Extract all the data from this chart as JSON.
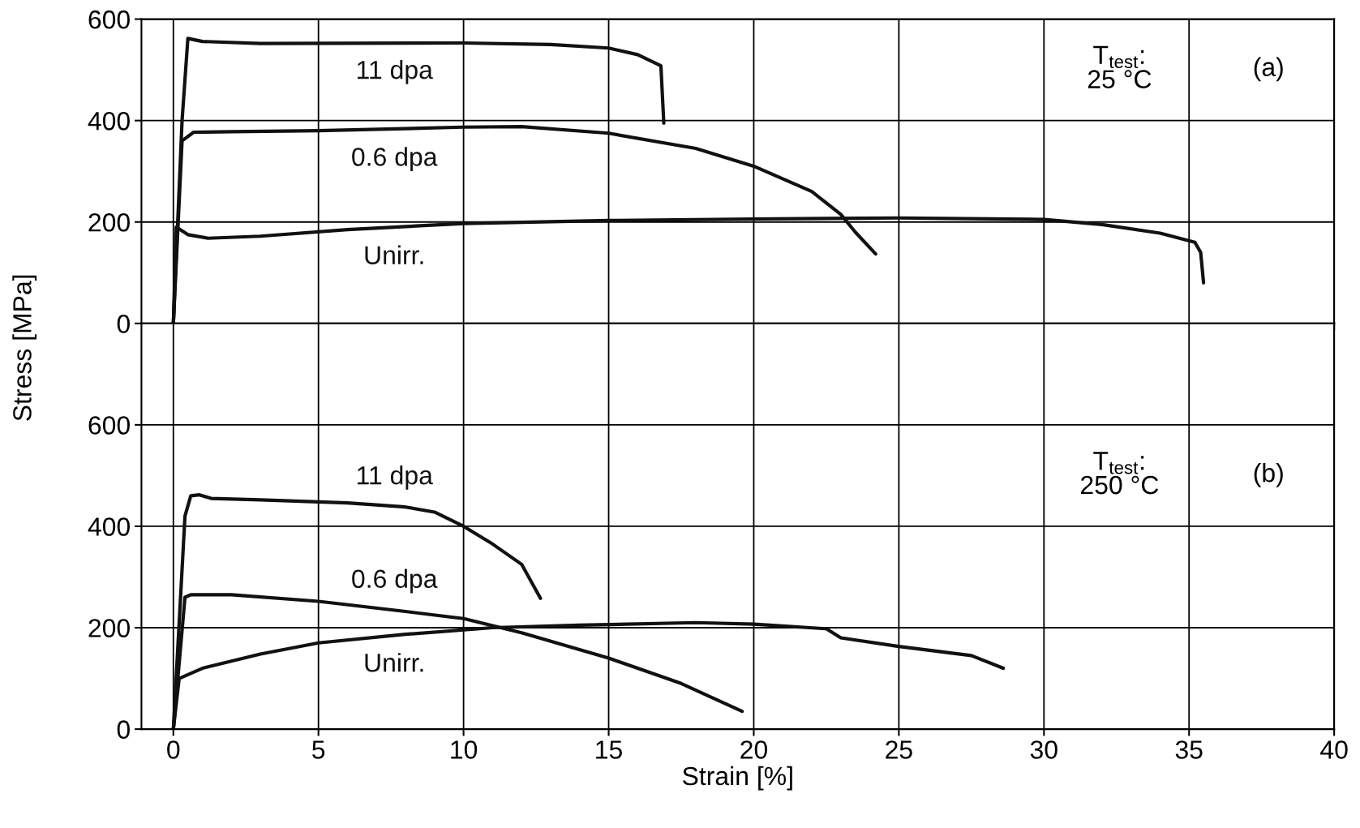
{
  "chart_data": [
    {
      "type": "line",
      "ylabel": "Stress [MPa]",
      "xlim": [
        -1.1,
        40
      ],
      "xticks": [
        0,
        5,
        10,
        15,
        20,
        25,
        30,
        35,
        40
      ],
      "ylim": [
        0,
        600
      ],
      "yticks": [
        0,
        200,
        400,
        600
      ],
      "grid": true,
      "tick_labels": "y",
      "marker": "none",
      "line_style": "solid",
      "series": [
        {
          "name": "11 dpa",
          "color": "#111111",
          "x": [
            0,
            0.3,
            0.5,
            1,
            3,
            10,
            13,
            15,
            16,
            16.8,
            16.9
          ],
          "values": [
            0,
            400,
            562,
            556,
            552,
            553,
            550,
            543,
            530,
            508,
            395
          ]
        },
        {
          "name": "0.6 dpa",
          "color": "#111111",
          "x": [
            0,
            0.3,
            0.7,
            2,
            5,
            10,
            12,
            15,
            18,
            20,
            22,
            23,
            23.5,
            24.2
          ],
          "values": [
            0,
            360,
            377,
            378,
            380,
            387,
            388,
            375,
            345,
            310,
            260,
            215,
            180,
            137
          ]
        },
        {
          "name": "Unirr.",
          "color": "#111111",
          "x": [
            0,
            0.1,
            0.5,
            1.2,
            3,
            6,
            10,
            15,
            20,
            25,
            30,
            32,
            34,
            35.2,
            35.4,
            35.5
          ],
          "values": [
            0,
            190,
            175,
            168,
            172,
            185,
            197,
            203,
            206,
            208,
            205,
            195,
            178,
            160,
            140,
            80
          ]
        }
      ],
      "annotations": [
        "T$_{test}$:\n25 °C",
        "(a)"
      ]
    },
    {
      "type": "line",
      "xlabel": "Strain [%]",
      "xlim": [
        -1.1,
        40
      ],
      "xticks": [
        0,
        5,
        10,
        15,
        20,
        25,
        30,
        35,
        40
      ],
      "ylim": [
        0,
        800
      ],
      "yticks": [
        0,
        200,
        400,
        600
      ],
      "grid": true,
      "marker": "none",
      "line_style": "solid",
      "series": [
        {
          "name": "11 dpa",
          "color": "#111111",
          "x": [
            0,
            0.4,
            0.6,
            0.9,
            1.3,
            3,
            6,
            8,
            9,
            10,
            11,
            12,
            12.65
          ],
          "values": [
            0,
            420,
            460,
            462,
            455,
            452,
            446,
            438,
            428,
            400,
            365,
            325,
            258
          ]
        },
        {
          "name": "0.6 dpa",
          "color": "#111111",
          "x": [
            0,
            0.4,
            0.6,
            2,
            5,
            8,
            10,
            12,
            15,
            17.5,
            19.6
          ],
          "values": [
            0,
            260,
            265,
            265,
            252,
            232,
            218,
            190,
            140,
            90,
            35
          ]
        },
        {
          "name": "Unirr.",
          "color": "#111111",
          "x": [
            0,
            0.2,
            1,
            3,
            5,
            8,
            11,
            14,
            18,
            20,
            22.5,
            23,
            25,
            27.5,
            28.6
          ],
          "values": [
            0,
            100,
            120,
            148,
            170,
            187,
            200,
            205,
            210,
            207,
            198,
            180,
            163,
            145,
            120
          ]
        }
      ],
      "annotations": [
        "T$_{test}$:\n250 °C",
        "(b)"
      ]
    }
  ]
}
